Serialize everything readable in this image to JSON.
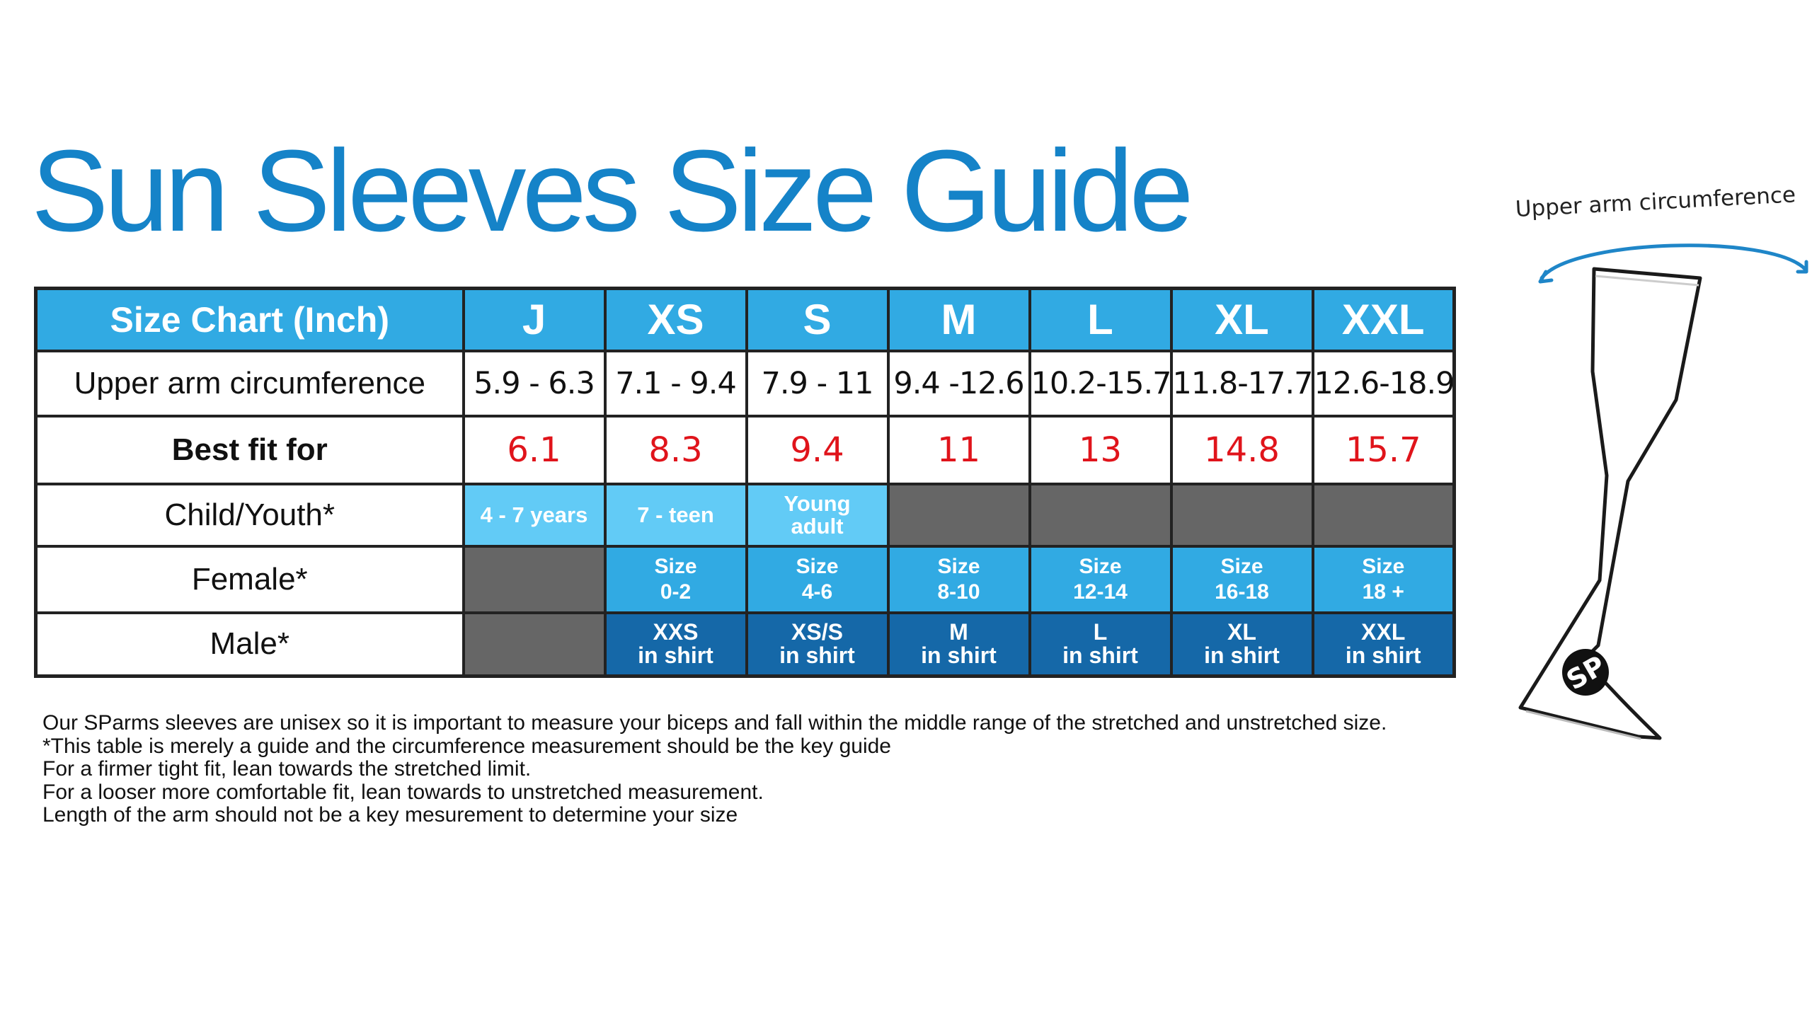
{
  "title": "Sun Sleeves Size Guide",
  "table": {
    "header_label": "Size Chart (Inch)",
    "sizes": [
      "J",
      "XS",
      "S",
      "M",
      "L",
      "XL",
      "XXL"
    ],
    "rows": {
      "circumference": {
        "label": "Upper arm circumference",
        "values": [
          "5.9 - 6.3",
          "7.1 - 9.4",
          "7.9 - 11",
          "9.4 -12.6",
          "10.2-15.7",
          "11.8-17.7",
          "12.6-18.9"
        ]
      },
      "best_fit": {
        "label": "Best fit for",
        "values": [
          "6.1",
          "8.3",
          "9.4",
          "11",
          "13",
          "14.8",
          "15.7"
        ]
      },
      "child": {
        "label": "Child/Youth*",
        "values": [
          [
            "4 - 7 years"
          ],
          [
            "7 - teen"
          ],
          [
            "Young",
            "adult"
          ],
          null,
          null,
          null,
          null
        ]
      },
      "female": {
        "label": "Female*",
        "values": [
          null,
          [
            "Size",
            "0-2"
          ],
          [
            "Size",
            "4-6"
          ],
          [
            "Size",
            "8-10"
          ],
          [
            "Size",
            "12-14"
          ],
          [
            "Size",
            "16-18"
          ],
          [
            "Size",
            "18 +"
          ]
        ]
      },
      "male": {
        "label": "Male*",
        "values": [
          null,
          [
            "XXS",
            "in shirt"
          ],
          [
            "XS/S",
            "in shirt"
          ],
          [
            "M",
            "in shirt"
          ],
          [
            "L",
            "in shirt"
          ],
          [
            "XL",
            "in shirt"
          ],
          [
            "XXL",
            "in shirt"
          ]
        ]
      }
    }
  },
  "notes": [
    "Our SParms sleeves are unisex so it is important to measure your biceps and fall within the middle range of the stretched and unstretched size.",
    "*This table is merely a guide and the circumference measurement should be the key guide",
    "For a firmer tight fit, lean towards the stretched limit.",
    "For a looser more comfortable fit, lean towards to unstretched measurement.",
    "Length of the arm should not be a key mesurement to determine your size"
  ],
  "diagram": {
    "label": "Upper arm circumference",
    "logo_text": "SP"
  },
  "colors": {
    "title": "#1583c8",
    "header": "#31aae3",
    "child": "#62cbf6",
    "female": "#31aae3",
    "male": "#1568a8",
    "unavailable": "#666666",
    "best_fit_text": "#e0141b"
  }
}
